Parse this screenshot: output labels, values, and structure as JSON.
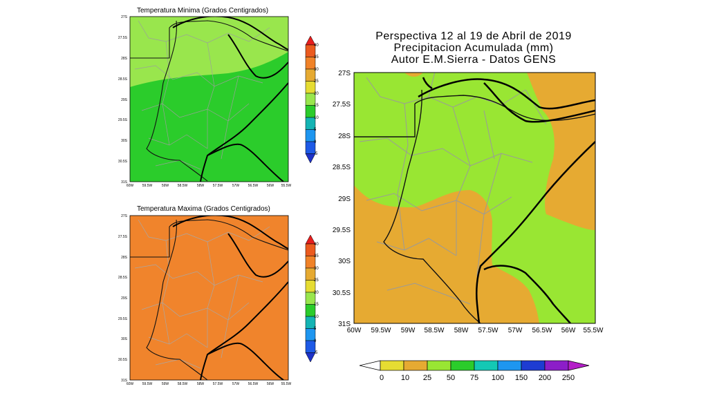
{
  "maps": [
    {
      "id": "temp-min",
      "title": "Temperatura Minima (Grados Centigrados)",
      "lat_labels": [
        "27S",
        "27.5S",
        "28S",
        "28.5S",
        "29S",
        "29.5S",
        "30S",
        "30.5S",
        "31S"
      ],
      "lon_labels": [
        "60W",
        "59.5W",
        "59W",
        "58.5W",
        "58W",
        "57.5W",
        "57W",
        "56.5W",
        "56W",
        "55.5W"
      ],
      "fill_colors": [
        "#99e64d",
        "#2bcc2b"
      ],
      "colorbar": {
        "labels": [
          "40",
          "35",
          "30",
          "25",
          "20",
          "15",
          "10",
          "5",
          "0",
          "-5"
        ],
        "colors": [
          "#e61e1e",
          "#eb5a1e",
          "#f08228",
          "#e6aa32",
          "#e6dc32",
          "#99e64d",
          "#2bcc2b",
          "#14b4b4",
          "#1e96f0",
          "#1e5ae6",
          "#1e32c8"
        ]
      }
    },
    {
      "id": "temp-max",
      "title": "Temperatura Maxima (Grados Centigrados)",
      "lat_labels": [
        "27S",
        "27.5S",
        "28S",
        "28.5S",
        "29S",
        "29.5S",
        "30S",
        "30.5S",
        "31S"
      ],
      "lon_labels": [
        "60W",
        "59.5W",
        "59W",
        "58.5W",
        "58W",
        "57.5W",
        "57W",
        "56.5W",
        "56W",
        "55.5W"
      ],
      "fill_colors": [
        "#f0842c"
      ],
      "colorbar": {
        "labels": [
          "40",
          "35",
          "30",
          "25",
          "20",
          "15",
          "10",
          "5",
          "0",
          "-5"
        ],
        "colors": [
          "#e61e1e",
          "#eb5a1e",
          "#f08228",
          "#e6aa32",
          "#e6dc32",
          "#99e64d",
          "#2bcc2b",
          "#14b4b4",
          "#1e96f0",
          "#1e5ae6",
          "#1e32c8"
        ]
      }
    }
  ],
  "precip": {
    "title_lines": [
      "Perspectiva 12 al 19 de Abril de 2019",
      "Precipitacion Acumulada (mm)",
      "Autor E.M.Sierra - Datos GENS"
    ],
    "lat_labels": [
      "27S",
      "27.5S",
      "28S",
      "28.5S",
      "29S",
      "29.5S",
      "30S",
      "30.5S",
      "31S"
    ],
    "lon_labels": [
      "60W",
      "59.5W",
      "59W",
      "58.5W",
      "58W",
      "57.5W",
      "57W",
      "56.5W",
      "56W",
      "55.5W"
    ],
    "fill_colors": [
      "#99e633",
      "#e6aa32"
    ],
    "colorbar": {
      "labels": [
        "0",
        "10",
        "25",
        "50",
        "75",
        "100",
        "150",
        "200",
        "250"
      ],
      "colors": [
        "#ffffff",
        "#e6dc32",
        "#e6aa32",
        "#99e633",
        "#2bcc2b",
        "#14c8b4",
        "#1e96f0",
        "#1e3cd2",
        "#8c1ec8",
        "#b41ec8"
      ]
    }
  }
}
